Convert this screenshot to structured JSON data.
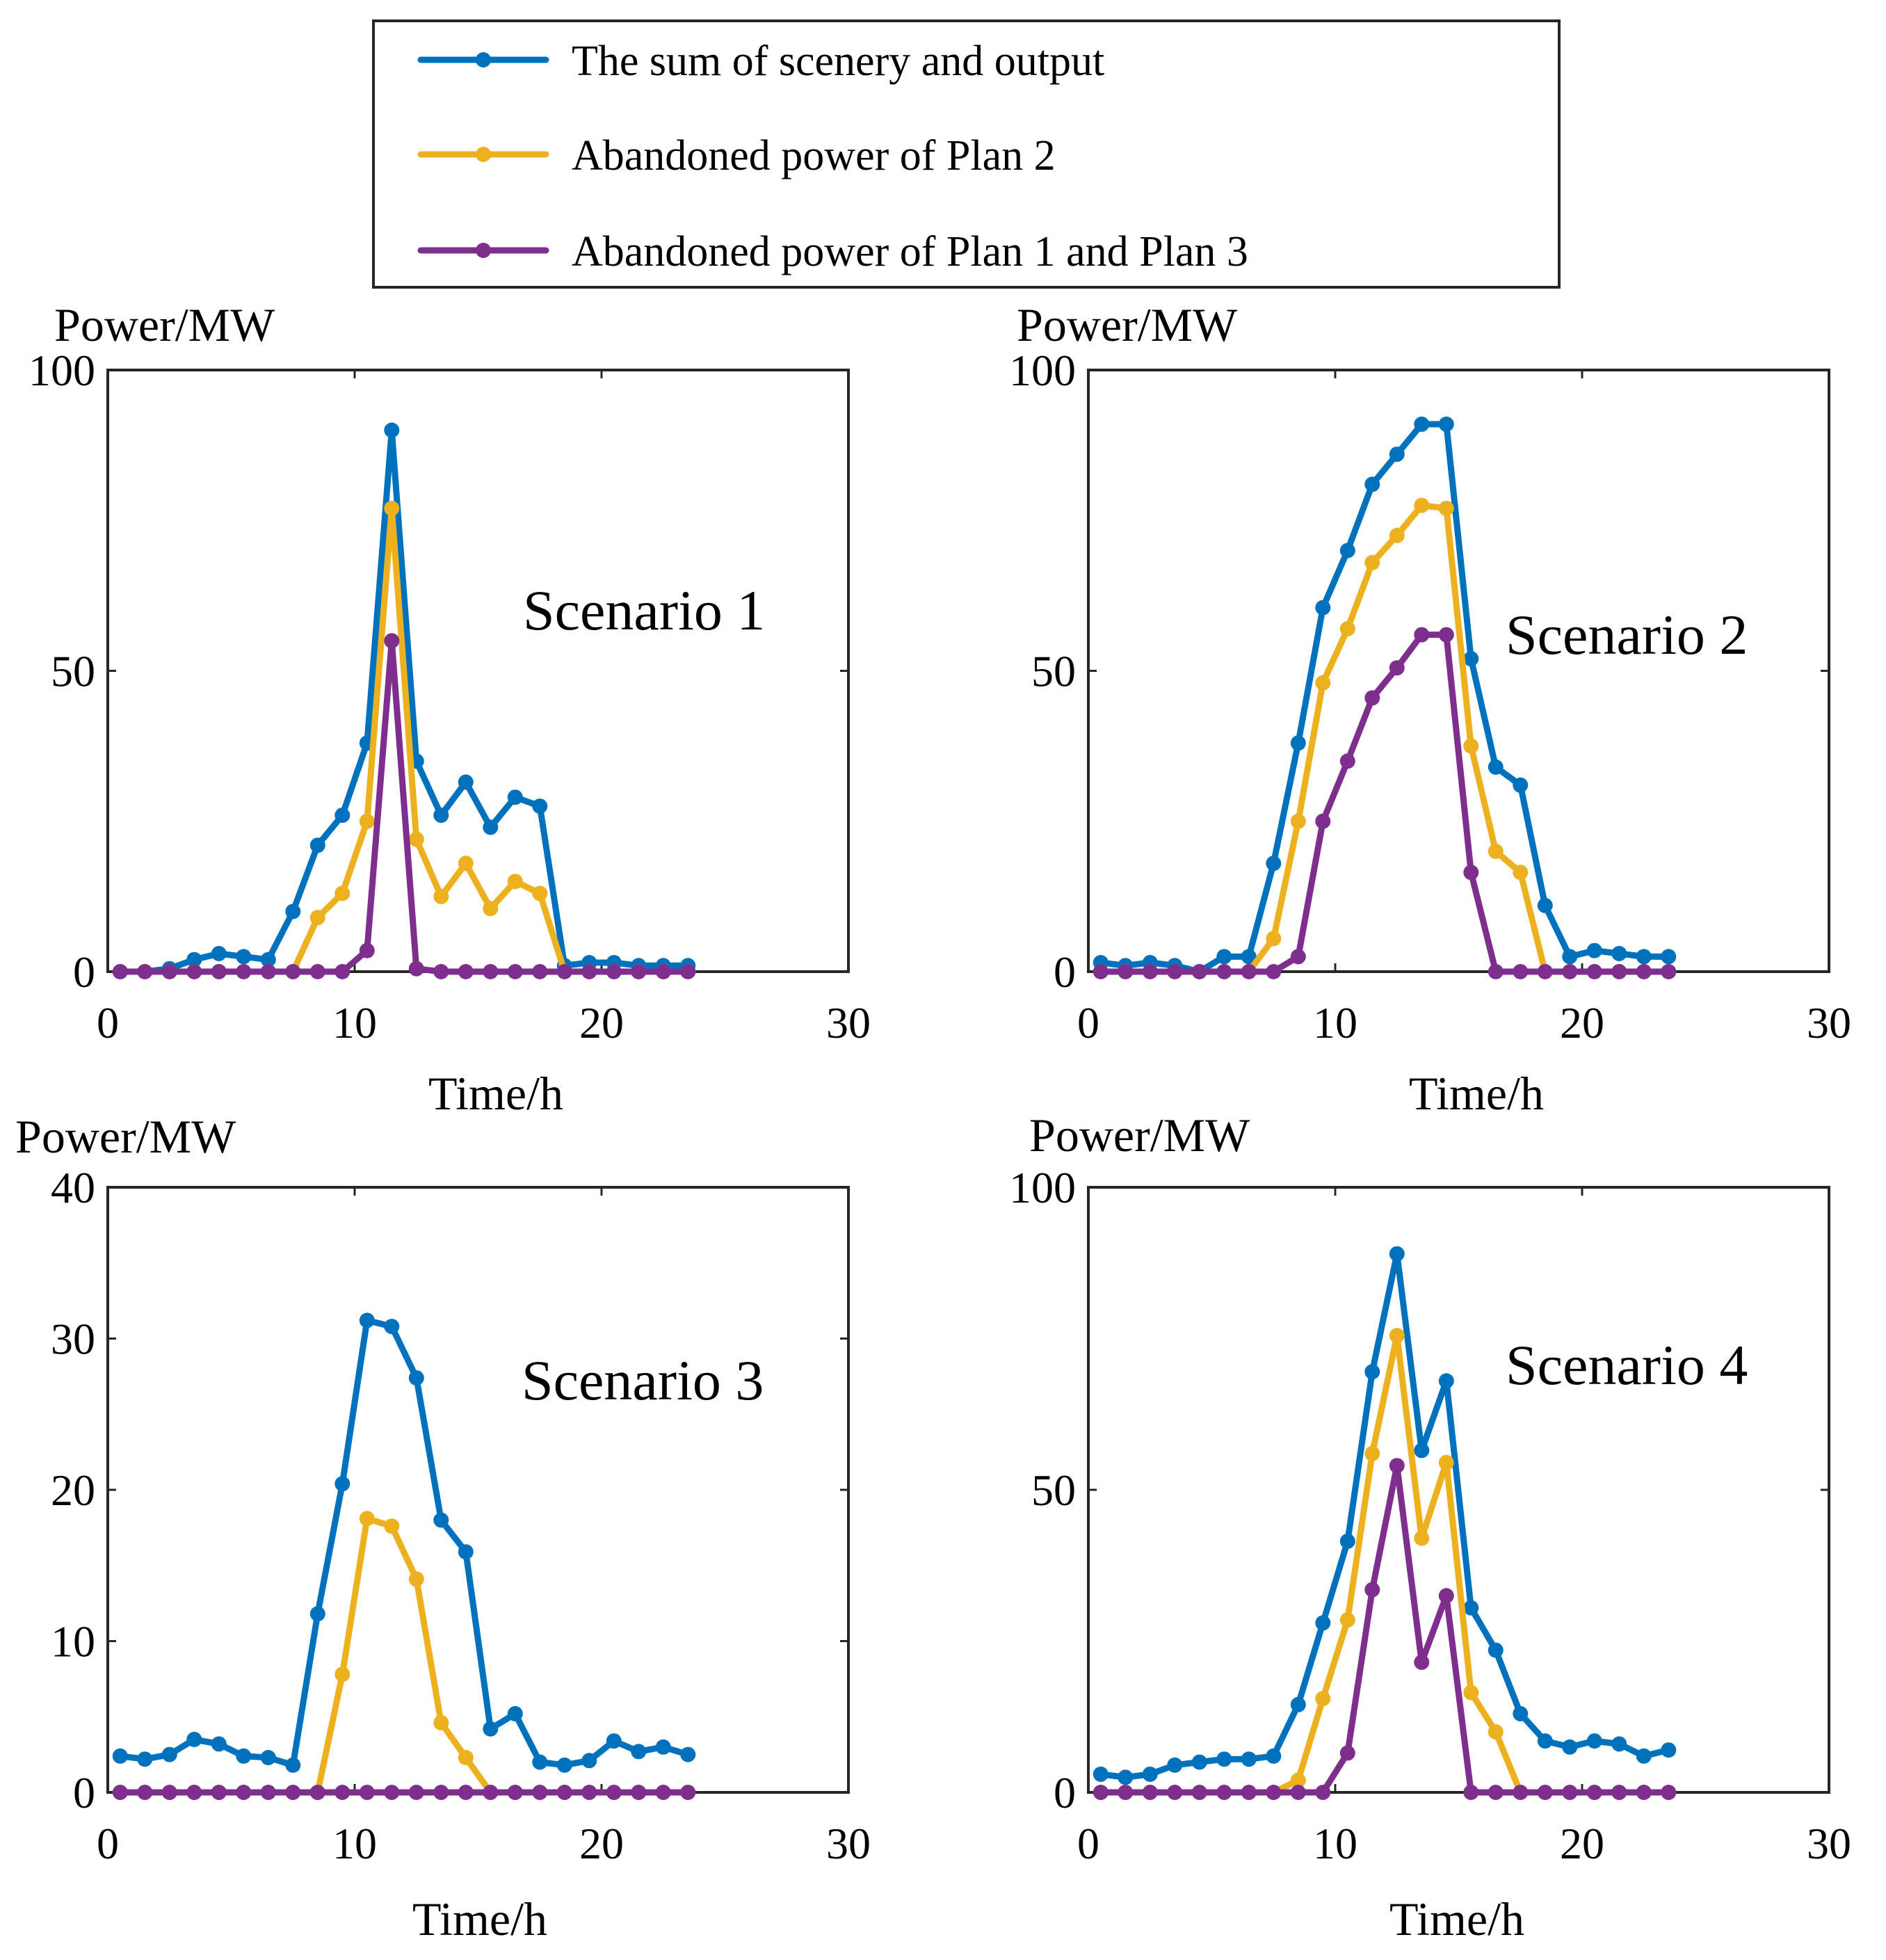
{
  "colors": {
    "sum": "#0072BD",
    "plan2": "#EDB120",
    "plan13": "#7E2F8E",
    "axis": "#262626"
  },
  "legend": [
    {
      "key": "sum",
      "label": "The sum of scenery and output"
    },
    {
      "key": "plan2",
      "label": "Abandoned power of Plan 2"
    },
    {
      "key": "plan13",
      "label": "Abandoned power of Plan 1 and Plan 3"
    }
  ],
  "chart_data": [
    {
      "type": "line",
      "title": "Scenario 1",
      "xlabel": "Time/h",
      "ylabel": "Power/MW",
      "xlim": [
        0,
        30
      ],
      "ylim": [
        0,
        100
      ],
      "xticks": [
        0,
        10,
        20,
        30
      ],
      "yticks": [
        0,
        50,
        100
      ],
      "x": [
        0.5,
        1.5,
        2.5,
        3.5,
        4.5,
        5.5,
        6.5,
        7.5,
        8.5,
        9.5,
        10.5,
        11.5,
        12.5,
        13.5,
        14.5,
        15.5,
        16.5,
        17.5,
        18.5,
        19.5,
        20.5,
        21.5,
        22.5,
        23.5
      ],
      "series": [
        {
          "key": "sum",
          "name": "The sum of scenery and output",
          "values": [
            0,
            0,
            0.5,
            2,
            3,
            2.5,
            2,
            10,
            21,
            26,
            38,
            90,
            35,
            26,
            31.5,
            24,
            29,
            27.5,
            1,
            1.5,
            1.5,
            1,
            1,
            1
          ]
        },
        {
          "key": "plan2",
          "name": "Abandoned power of Plan 2",
          "values": [
            0,
            0,
            0,
            0,
            0,
            0,
            0,
            0,
            9,
            13,
            25,
            77,
            22,
            12.5,
            18,
            10.5,
            15,
            13,
            0,
            0,
            0,
            0,
            0,
            0
          ]
        },
        {
          "key": "plan13",
          "name": "Abandoned power of Plan 1 and Plan 3",
          "values": [
            0,
            0,
            0,
            0,
            0,
            0,
            0,
            0,
            0,
            0,
            3.5,
            55,
            0.5,
            0,
            0,
            0,
            0,
            0,
            0,
            0,
            0,
            0,
            0,
            0
          ]
        }
      ]
    },
    {
      "type": "line",
      "title": "Scenario 2",
      "xlabel": "Time/h",
      "ylabel": "Power/MW",
      "xlim": [
        0,
        30
      ],
      "ylim": [
        0,
        100
      ],
      "xticks": [
        0,
        10,
        20,
        30
      ],
      "yticks": [
        0,
        50,
        100
      ],
      "x": [
        0.5,
        1.5,
        2.5,
        3.5,
        4.5,
        5.5,
        6.5,
        7.5,
        8.5,
        9.5,
        10.5,
        11.5,
        12.5,
        13.5,
        14.5,
        15.5,
        16.5,
        17.5,
        18.5,
        19.5,
        20.5,
        21.5,
        22.5,
        23.5
      ],
      "series": [
        {
          "key": "sum",
          "name": "The sum of scenery and output",
          "values": [
            1.5,
            1,
            1.5,
            1,
            0,
            2.5,
            2.5,
            18,
            38,
            60.5,
            70,
            81,
            86,
            91,
            91,
            52,
            34,
            31,
            11,
            2.5,
            3.5,
            3,
            2.5,
            2.5
          ]
        },
        {
          "key": "plan2",
          "name": "Abandoned power of Plan 2",
          "values": [
            0,
            0,
            0,
            0,
            0,
            0,
            0,
            5.5,
            25,
            48,
            57,
            68,
            72.5,
            77.5,
            77,
            37.5,
            20,
            16.5,
            0,
            0,
            0,
            0,
            0,
            0
          ]
        },
        {
          "key": "plan13",
          "name": "Abandoned power of Plan 1 and Plan 3",
          "values": [
            0,
            0,
            0,
            0,
            0,
            0,
            0,
            0,
            2.5,
            25,
            35,
            45.5,
            50.5,
            56,
            56,
            16.5,
            0,
            0,
            0,
            0,
            0,
            0,
            0,
            0
          ]
        }
      ]
    },
    {
      "type": "line",
      "title": "Scenario 3",
      "xlabel": "Time/h",
      "ylabel": "Power/MW",
      "xlim": [
        0,
        30
      ],
      "ylim": [
        0,
        40
      ],
      "xticks": [
        0,
        10,
        20,
        30
      ],
      "yticks": [
        0,
        10,
        20,
        30,
        40
      ],
      "x": [
        0.5,
        1.5,
        2.5,
        3.5,
        4.5,
        5.5,
        6.5,
        7.5,
        8.5,
        9.5,
        10.5,
        11.5,
        12.5,
        13.5,
        14.5,
        15.5,
        16.5,
        17.5,
        18.5,
        19.5,
        20.5,
        21.5,
        22.5,
        23.5
      ],
      "series": [
        {
          "key": "sum",
          "name": "The sum of scenery and output",
          "values": [
            2.4,
            2.2,
            2.5,
            3.5,
            3.2,
            2.4,
            2.3,
            1.8,
            11.8,
            20.4,
            31.2,
            30.8,
            27.4,
            18,
            15.9,
            4.2,
            5.2,
            2,
            1.8,
            2.1,
            3.4,
            2.7,
            3,
            2.5
          ]
        },
        {
          "key": "plan2",
          "name": "Abandoned power of Plan 2",
          "values": [
            0,
            0,
            0,
            0,
            0,
            0,
            0,
            0,
            0,
            7.8,
            18.1,
            17.6,
            14.1,
            4.6,
            2.3,
            0,
            0,
            0,
            0,
            0,
            0,
            0,
            0,
            0
          ]
        },
        {
          "key": "plan13",
          "name": "Abandoned power of Plan 1 and Plan 3",
          "values": [
            0,
            0,
            0,
            0,
            0,
            0,
            0,
            0,
            0,
            0,
            0,
            0,
            0,
            0,
            0,
            0,
            0,
            0,
            0,
            0,
            0,
            0,
            0,
            0
          ]
        }
      ]
    },
    {
      "type": "line",
      "title": "Scenario 4",
      "xlabel": "Time/h",
      "ylabel": "Power/MW",
      "xlim": [
        0,
        30
      ],
      "ylim": [
        0,
        100
      ],
      "xticks": [
        0,
        10,
        20,
        30
      ],
      "yticks": [
        0,
        50,
        100
      ],
      "x": [
        0.5,
        1.5,
        2.5,
        3.5,
        4.5,
        5.5,
        6.5,
        7.5,
        8.5,
        9.5,
        10.5,
        11.5,
        12.5,
        13.5,
        14.5,
        15.5,
        16.5,
        17.5,
        18.5,
        19.5,
        20.5,
        21.5,
        22.5,
        23.5
      ],
      "series": [
        {
          "key": "sum",
          "name": "The sum of scenery and output",
          "values": [
            3,
            2.5,
            3,
            4.5,
            5,
            5.5,
            5.5,
            6,
            14.5,
            28,
            41.5,
            69.5,
            89,
            56.5,
            68,
            30.5,
            23.5,
            13,
            8.5,
            7.5,
            8.5,
            8,
            6,
            7
          ]
        },
        {
          "key": "plan2",
          "name": "Abandoned power of Plan 2",
          "values": [
            0,
            0,
            0,
            0,
            0,
            0,
            0,
            0,
            2,
            15.5,
            28.5,
            56,
            75.5,
            42,
            54.5,
            16.5,
            10,
            0,
            0,
            0,
            0,
            0,
            0,
            0
          ]
        },
        {
          "key": "plan13",
          "name": "Abandoned power of Plan 1 and Plan 3",
          "values": [
            0,
            0,
            0,
            0,
            0,
            0,
            0,
            0,
            0,
            0,
            6.5,
            33.5,
            54,
            21.5,
            32.5,
            0,
            0,
            0,
            0,
            0,
            0,
            0,
            0,
            0
          ]
        }
      ]
    }
  ]
}
